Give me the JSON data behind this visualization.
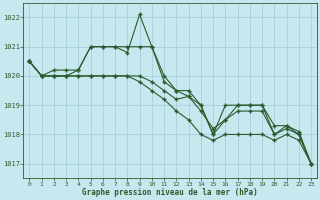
{
  "title": "Graphe pression niveau de la mer (hPa)",
  "background_color": "#c8e8f0",
  "grid_color": "#a8d0dc",
  "line_color": "#2d5a2d",
  "xlim": [
    -0.5,
    23.5
  ],
  "ylim": [
    1016.5,
    1022.5
  ],
  "yticks": [
    1017,
    1018,
    1019,
    1020,
    1021,
    1022
  ],
  "xticks": [
    0,
    1,
    2,
    3,
    4,
    5,
    6,
    7,
    8,
    9,
    10,
    11,
    12,
    13,
    14,
    15,
    16,
    17,
    18,
    19,
    20,
    21,
    22,
    23
  ],
  "series": [
    {
      "x": [
        0,
        1,
        2,
        3,
        4,
        5,
        6,
        7,
        8,
        9,
        10,
        11,
        12,
        13,
        14,
        15,
        16,
        17,
        18,
        19,
        20,
        21,
        22,
        23
      ],
      "y": [
        1020.5,
        1020.0,
        1020.0,
        1020.0,
        1020.2,
        1021.0,
        1021.0,
        1021.0,
        1020.8,
        1022.1,
        1021.0,
        1020.0,
        1019.5,
        1019.5,
        1019.0,
        1018.0,
        1019.0,
        1019.0,
        1019.0,
        1019.0,
        1018.3,
        1018.3,
        1018.1,
        1017.0
      ]
    },
    {
      "x": [
        0,
        1,
        2,
        3,
        4,
        5,
        6,
        7,
        8,
        9,
        10,
        11,
        12,
        13,
        14,
        15,
        16,
        17,
        18,
        19,
        20,
        21,
        22,
        23
      ],
      "y": [
        1020.5,
        1020.0,
        1020.2,
        1020.2,
        1020.2,
        1021.0,
        1021.0,
        1021.0,
        1021.0,
        1021.0,
        1021.0,
        1019.8,
        1019.5,
        1019.3,
        1019.0,
        1018.0,
        1018.5,
        1019.0,
        1019.0,
        1019.0,
        1018.0,
        1018.3,
        1018.0,
        1017.0
      ]
    },
    {
      "x": [
        0,
        1,
        2,
        3,
        4,
        5,
        6,
        7,
        8,
        9,
        10,
        11,
        12,
        13,
        14,
        15,
        16,
        17,
        18,
        19,
        20,
        21,
        22,
        23
      ],
      "y": [
        1020.5,
        1020.0,
        1020.0,
        1020.0,
        1020.0,
        1020.0,
        1020.0,
        1020.0,
        1020.0,
        1020.0,
        1019.8,
        1019.5,
        1019.2,
        1019.3,
        1018.8,
        1018.2,
        1018.5,
        1018.8,
        1018.8,
        1018.8,
        1018.0,
        1018.2,
        1018.0,
        1017.0
      ]
    },
    {
      "x": [
        0,
        1,
        2,
        3,
        4,
        5,
        6,
        7,
        8,
        9,
        10,
        11,
        12,
        13,
        14,
        15,
        16,
        17,
        18,
        19,
        20,
        21,
        22,
        23
      ],
      "y": [
        1020.5,
        1020.0,
        1020.0,
        1020.0,
        1020.0,
        1020.0,
        1020.0,
        1020.0,
        1020.0,
        1019.8,
        1019.5,
        1019.2,
        1018.8,
        1018.5,
        1018.0,
        1017.8,
        1018.0,
        1018.0,
        1018.0,
        1018.0,
        1017.8,
        1018.0,
        1017.8,
        1017.0
      ]
    }
  ]
}
